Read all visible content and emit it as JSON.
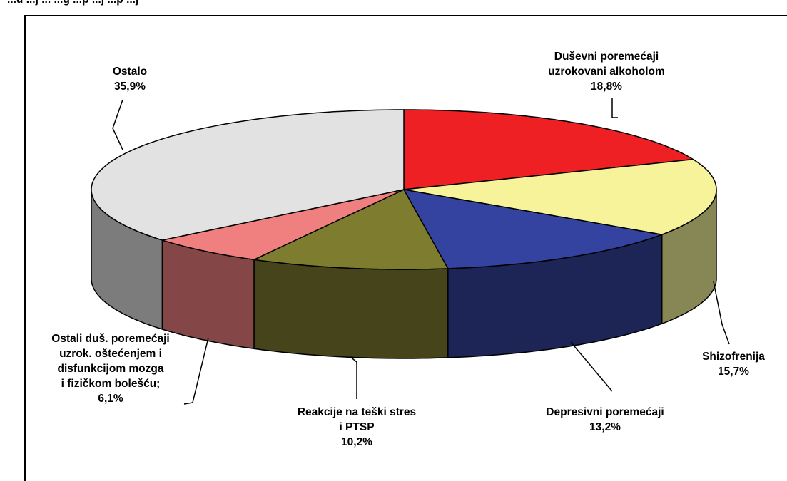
{
  "chart_data": {
    "type": "pie",
    "style": "3d-exploded-pie",
    "title": "",
    "slices": [
      {
        "label": [
          "Duševni poremećaji",
          "uzrokovani alkoholom",
          "18,8%"
        ],
        "value": 18.8,
        "color": "#ee2024"
      },
      {
        "label": [
          "Shizofrenija",
          "15,7%"
        ],
        "value": 15.7,
        "color": "#f6f39a"
      },
      {
        "label": [
          "Depresivni poremećaji",
          "13,2%"
        ],
        "value": 13.2,
        "color": "#34439f"
      },
      {
        "label": [
          "Reakcije na teški stres",
          "i PTSP",
          "10,2%"
        ],
        "value": 10.2,
        "color": "#7d7c2f"
      },
      {
        "label": [
          "Ostali duš. poremećaji",
          "uzrok. oštećenjem i",
          "disfunkcijom mozga",
          "i fizičkom bolešću;",
          "6,1%"
        ],
        "value": 6.1,
        "color": "#f08080"
      },
      {
        "label": [
          "Ostalo",
          "35,9%"
        ],
        "value": 35.9,
        "color": "#e2e2e2"
      }
    ],
    "top_text_fragment": "...u   ...j   ... ...g   ...p   ...j   ...p   ...j"
  }
}
